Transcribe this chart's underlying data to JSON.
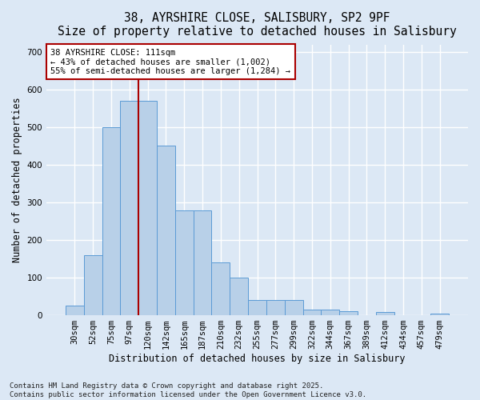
{
  "title_line1": "38, AYRSHIRE CLOSE, SALISBURY, SP2 9PF",
  "title_line2": "Size of property relative to detached houses in Salisbury",
  "xlabel": "Distribution of detached houses by size in Salisbury",
  "ylabel": "Number of detached properties",
  "bar_labels": [
    "30sqm",
    "52sqm",
    "75sqm",
    "97sqm",
    "120sqm",
    "142sqm",
    "165sqm",
    "187sqm",
    "210sqm",
    "232sqm",
    "255sqm",
    "277sqm",
    "299sqm",
    "322sqm",
    "344sqm",
    "367sqm",
    "389sqm",
    "412sqm",
    "434sqm",
    "457sqm",
    "479sqm"
  ],
  "bar_values": [
    25,
    160,
    500,
    570,
    570,
    450,
    278,
    278,
    140,
    100,
    40,
    40,
    40,
    15,
    15,
    10,
    0,
    8,
    0,
    0,
    5
  ],
  "bar_color": "#b8d0e8",
  "bar_edgecolor": "#5b9bd5",
  "background_color": "#dce8f5",
  "grid_color": "#ffffff",
  "vline_color": "#aa0000",
  "vline_x_index": 3.5,
  "annotation_text": "38 AYRSHIRE CLOSE: 111sqm\n← 43% of detached houses are smaller (1,002)\n55% of semi-detached houses are larger (1,284) →",
  "annotation_box_facecolor": "#ffffff",
  "annotation_box_edgecolor": "#aa0000",
  "ylim": [
    0,
    720
  ],
  "yticks": [
    0,
    100,
    200,
    300,
    400,
    500,
    600,
    700
  ],
  "footer_text": "Contains HM Land Registry data © Crown copyright and database right 2025.\nContains public sector information licensed under the Open Government Licence v3.0.",
  "title_fontsize": 10.5,
  "axis_label_fontsize": 8.5,
  "tick_fontsize": 7.5,
  "annotation_fontsize": 7.5,
  "footer_fontsize": 6.5
}
